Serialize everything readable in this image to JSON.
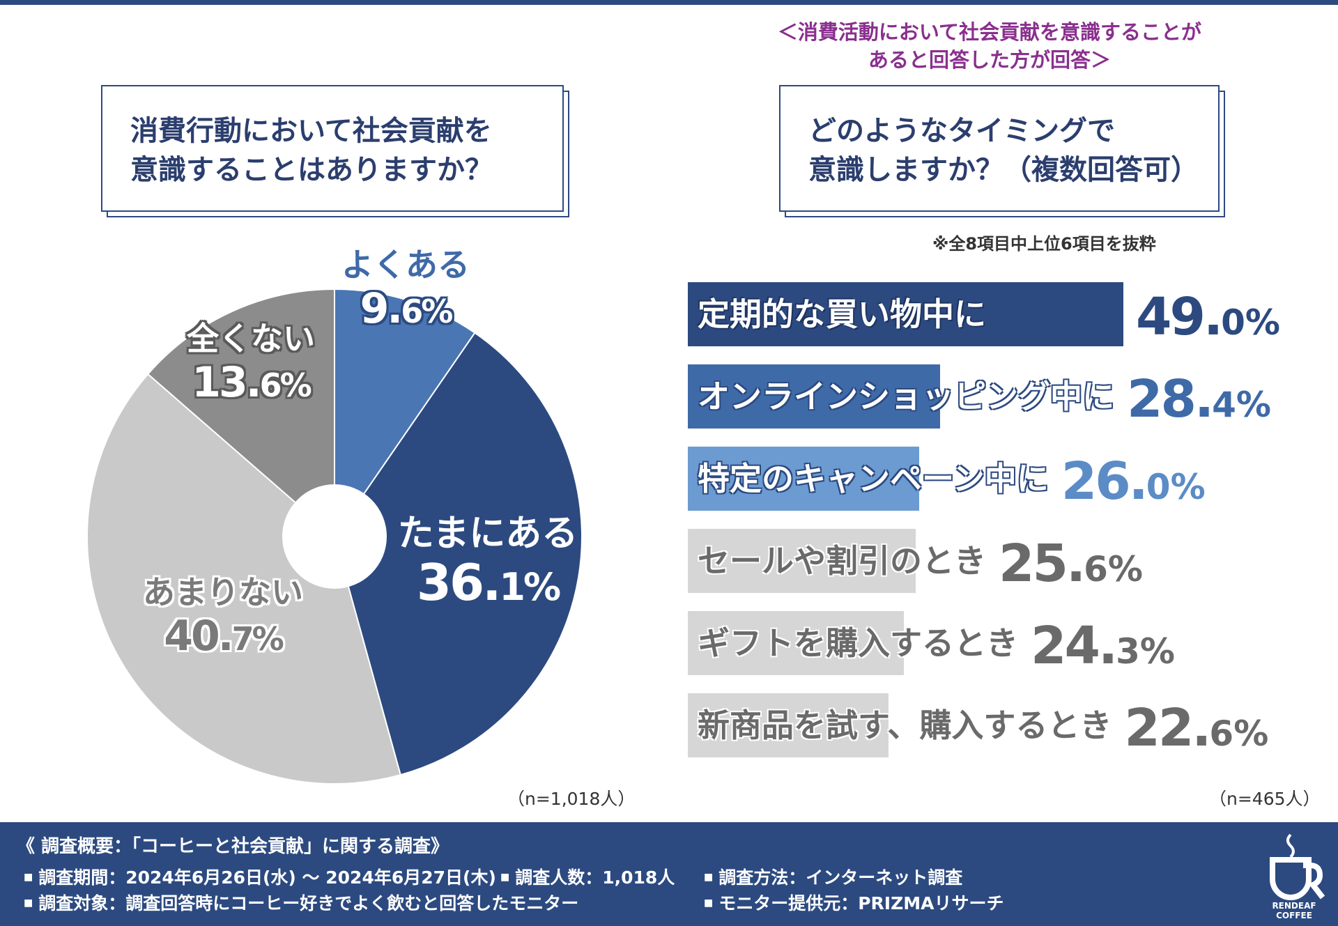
{
  "left_question": {
    "line1": "消費行動において社会貢献を",
    "line2": "意識することはありますか？",
    "n": "（n=1,018人）"
  },
  "right_header": {
    "subtitle_line1": "＜消費活動において社会貢献を意識することが",
    "subtitle_line2": "あると回答した方が回答＞",
    "line1": "どのようなタイミングで",
    "line2": "意識しますか？（複数回答可）",
    "note": "※全8項目中上位6項目を抜粋",
    "n": "（n=465人）"
  },
  "chart_data": [
    {
      "type": "pie",
      "title": "消費行動において社会貢献を意識することはありますか？",
      "slices": [
        {
          "label": "よくある",
          "value": 9.6,
          "pct_int": "9.",
          "pct_dec": "6%",
          "color": "#4a76b4"
        },
        {
          "label": "たまにある",
          "value": 36.1,
          "pct_int": "36.",
          "pct_dec": "1%",
          "color": "#2c4a80"
        },
        {
          "label": "あまりない",
          "value": 40.7,
          "pct_int": "40.",
          "pct_dec": "7%",
          "color": "#c9c9c9"
        },
        {
          "label": "全くない",
          "value": 13.6,
          "pct_int": "13.",
          "pct_dec": "6%",
          "color": "#8c8c8c"
        }
      ]
    },
    {
      "type": "bar",
      "orientation": "horizontal",
      "title": "どのようなタイミングで意識しますか？（複数回答可）",
      "max": 49.0,
      "bars": [
        {
          "label": "定期的な買い物中に",
          "value": 49.0,
          "int": "49.",
          "dec": "0%",
          "color": "#2c4a80",
          "text_color": "#2c4a80"
        },
        {
          "label": "オンラインショッピング中に",
          "value": 28.4,
          "int": "28.",
          "dec": "4%",
          "color": "#3f6aa8",
          "text_color": "#3f6aa8"
        },
        {
          "label": "特定のキャンペーン中に",
          "value": 26.0,
          "int": "26.",
          "dec": "0%",
          "color": "#6c9bd1",
          "text_color": "#5b8cc6"
        },
        {
          "label": "セールや割引のとき",
          "value": 25.6,
          "int": "25.",
          "dec": "6%",
          "color": "#d6d6d6",
          "text_color": "#6a6a6a"
        },
        {
          "label": "ギフトを購入するとき",
          "value": 24.3,
          "int": "24.",
          "dec": "3%",
          "color": "#d6d6d6",
          "text_color": "#6a6a6a"
        },
        {
          "label": "新商品を試す、購入するとき",
          "value": 22.6,
          "int": "22.",
          "dec": "6%",
          "color": "#d6d6d6",
          "text_color": "#6a6a6a"
        }
      ]
    }
  ],
  "footer": {
    "title": "《 調査概要：「コーヒーと社会貢献」に関する調査》",
    "period": "調査期間：2024年6月26日(水) ～ 2024年6月27日(木)",
    "count": "調査人数：1,018人",
    "method": "調査方法：インターネット調査",
    "target": "調査対象：調査回答時にコーヒー好きでよく飲むと回答したモニター",
    "provider": "モニター提供元：PRIZMAリサーチ"
  },
  "logo": {
    "text1": "RENDEAF",
    "text2": "COFFEE"
  }
}
